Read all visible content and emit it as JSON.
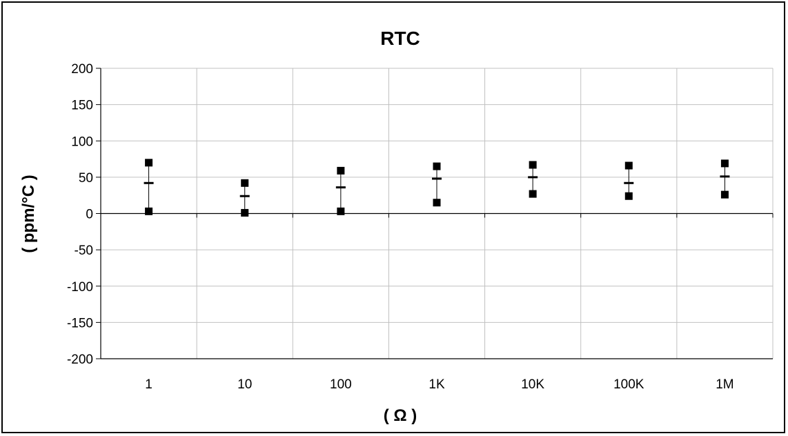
{
  "chart_data": {
    "type": "scatter",
    "title": "RTC",
    "xlabel": "( Ω )",
    "ylabel": "( ppm/°C )",
    "categories": [
      "1",
      "10",
      "100",
      "1K",
      "10K",
      "100K",
      "1M"
    ],
    "ylim": [
      -200,
      200
    ],
    "yticks": [
      200,
      150,
      100,
      50,
      0,
      -50,
      -100,
      -150,
      -200
    ],
    "grid": true,
    "legend": "none",
    "series": [
      {
        "values": [
          70,
          42,
          59,
          65,
          67,
          66,
          69
        ]
      },
      {
        "values": [
          42,
          24,
          36,
          48,
          50,
          42,
          51
        ]
      },
      {
        "values": [
          3,
          1,
          3,
          15,
          27,
          24,
          26
        ]
      }
    ],
    "colors": {
      "markers": "#000000",
      "grid": "#c0c0c0",
      "axis": "#000000",
      "background": "#ffffff"
    }
  }
}
